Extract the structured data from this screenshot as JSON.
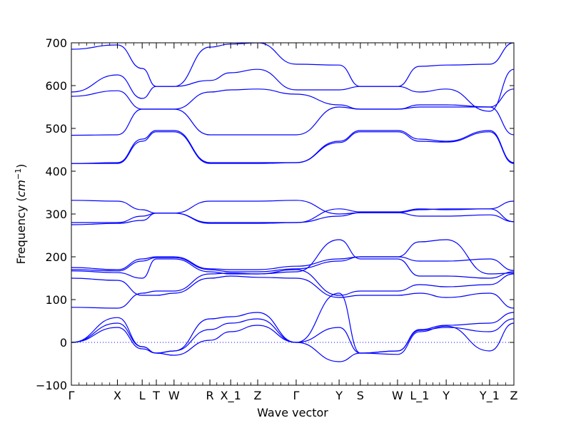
{
  "chart_data": {
    "type": "line",
    "title": "",
    "xlabel": "Wave vector",
    "ylabel_prefix": "Frequency (",
    "ylabel_unit": "cm",
    "ylabel_exp": "−1",
    "ylabel_suffix": ")",
    "ylim": [
      -100,
      700
    ],
    "yticks": [
      -100,
      0,
      100,
      200,
      300,
      400,
      500,
      600,
      700
    ],
    "ytick_labels": [
      "−100",
      "0",
      "100",
      "200",
      "300",
      "400",
      "500",
      "600",
      "700"
    ],
    "xlim": [
      0,
      1
    ],
    "reference_line": {
      "y": 0,
      "style": "dotted"
    },
    "grid": false,
    "line_color": "#0000ff",
    "high_symmetry_points": [
      {
        "label": "Γ",
        "x": 0.0
      },
      {
        "label": "X",
        "x": 0.104
      },
      {
        "label": "L",
        "x": 0.16
      },
      {
        "label": "T",
        "x": 0.192
      },
      {
        "label": "W",
        "x": 0.232
      },
      {
        "label": "R",
        "x": 0.313
      },
      {
        "label": "X_1",
        "x": 0.36
      },
      {
        "label": "Z",
        "x": 0.421
      },
      {
        "label": "Γ",
        "x": 0.508
      },
      {
        "label": "Y",
        "x": 0.605
      },
      {
        "label": "S",
        "x": 0.653
      },
      {
        "label": "W",
        "x": 0.737
      },
      {
        "label": "L_1",
        "x": 0.787
      },
      {
        "label": "Y",
        "x": 0.847
      },
      {
        "label": "Y_1",
        "x": 0.945
      },
      {
        "label": "Z",
        "x": 1.0
      }
    ],
    "series": [
      {
        "x": [
          0,
          0.104,
          0.16,
          0.192,
          0.232,
          0.313,
          0.36,
          0.421,
          0.508,
          0.605,
          0.653,
          0.737,
          0.787,
          0.847,
          0.945,
          1.0
        ],
        "y": [
          0,
          35,
          -15,
          -25,
          -30,
          5,
          25,
          40,
          0,
          -45,
          -25,
          -28,
          25,
          38,
          -20,
          45
        ]
      },
      {
        "x": [
          0,
          0.104,
          0.16,
          0.192,
          0.232,
          0.313,
          0.36,
          0.421,
          0.508,
          0.605,
          0.653,
          0.737,
          0.787,
          0.847,
          0.945,
          1.0
        ],
        "y": [
          0,
          45,
          -10,
          -25,
          -20,
          30,
          45,
          55,
          0,
          35,
          -25,
          -20,
          28,
          35,
          25,
          55
        ]
      },
      {
        "x": [
          0,
          0.104,
          0.16,
          0.192,
          0.232,
          0.313,
          0.36,
          0.421,
          0.508,
          0.605,
          0.653,
          0.737,
          0.787,
          0.847,
          0.945,
          1.0
        ],
        "y": [
          0,
          58,
          -10,
          -25,
          -20,
          55,
          60,
          70,
          0,
          115,
          -25,
          -20,
          30,
          40,
          45,
          70
        ]
      },
      {
        "x": [
          0,
          0.104,
          0.16,
          0.192,
          0.232,
          0.313,
          0.36,
          0.421,
          0.508,
          0.605,
          0.653,
          0.737,
          0.787,
          0.847,
          0.945,
          1.0
        ],
        "y": [
          82,
          80,
          115,
          120,
          120,
          160,
          162,
          160,
          170,
          110,
          120,
          120,
          135,
          130,
          135,
          160
        ]
      },
      {
        "x": [
          0,
          0.104,
          0.16,
          0.192,
          0.232,
          0.313,
          0.36,
          0.421,
          0.508,
          0.605,
          0.653,
          0.737,
          0.787,
          0.847,
          0.945,
          1.0
        ],
        "y": [
          150,
          145,
          110,
          110,
          115,
          150,
          155,
          152,
          150,
          105,
          110,
          110,
          115,
          105,
          115,
          80
        ]
      },
      {
        "x": [
          0,
          0.104,
          0.16,
          0.192,
          0.232,
          0.313,
          0.36,
          0.421,
          0.508,
          0.605,
          0.653,
          0.737,
          0.787,
          0.847,
          0.945,
          1.0
        ],
        "y": [
          167,
          163,
          150,
          195,
          195,
          165,
          160,
          160,
          165,
          240,
          195,
          195,
          155,
          155,
          150,
          165
        ]
      },
      {
        "x": [
          0,
          0.104,
          0.16,
          0.192,
          0.232,
          0.313,
          0.36,
          0.421,
          0.508,
          0.605,
          0.653,
          0.737,
          0.787,
          0.847,
          0.945,
          1.0
        ],
        "y": [
          170,
          167,
          190,
          198,
          198,
          170,
          165,
          165,
          172,
          190,
          200,
          200,
          190,
          190,
          195,
          168
        ]
      },
      {
        "x": [
          0,
          0.104,
          0.16,
          0.192,
          0.232,
          0.313,
          0.36,
          0.421,
          0.508,
          0.605,
          0.653,
          0.737,
          0.787,
          0.847,
          0.945,
          1.0
        ],
        "y": [
          175,
          170,
          195,
          200,
          200,
          172,
          170,
          170,
          178,
          195,
          200,
          200,
          235,
          240,
          160,
          162
        ]
      },
      {
        "x": [
          0,
          0.104,
          0.16,
          0.192,
          0.232,
          0.313,
          0.36,
          0.421,
          0.508,
          0.605,
          0.653,
          0.737,
          0.787,
          0.847,
          0.945,
          1.0
        ],
        "y": [
          275,
          278,
          285,
          302,
          302,
          278,
          278,
          278,
          280,
          312,
          305,
          305,
          312,
          310,
          312,
          282
        ]
      },
      {
        "x": [
          0,
          0.104,
          0.16,
          0.192,
          0.232,
          0.313,
          0.36,
          0.421,
          0.508,
          0.605,
          0.653,
          0.737,
          0.787,
          0.847,
          0.945,
          1.0
        ],
        "y": [
          280,
          280,
          295,
          302,
          302,
          280,
          280,
          280,
          280,
          295,
          303,
          303,
          295,
          295,
          298,
          282
        ]
      },
      {
        "x": [
          0,
          0.104,
          0.16,
          0.192,
          0.232,
          0.313,
          0.36,
          0.421,
          0.508,
          0.605,
          0.653,
          0.737,
          0.787,
          0.847,
          0.945,
          1.0
        ],
        "y": [
          332,
          330,
          310,
          302,
          302,
          330,
          330,
          330,
          332,
          300,
          303,
          303,
          310,
          312,
          312,
          330
        ]
      },
      {
        "x": [
          0,
          0.104,
          0.16,
          0.192,
          0.232,
          0.313,
          0.36,
          0.421,
          0.508,
          0.605,
          0.653,
          0.737,
          0.787,
          0.847,
          0.945,
          1.0
        ],
        "y": [
          418,
          418,
          470,
          492,
          492,
          418,
          418,
          418,
          420,
          467,
          492,
          492,
          470,
          468,
          492,
          418
        ]
      },
      {
        "x": [
          0,
          0.104,
          0.16,
          0.192,
          0.232,
          0.313,
          0.36,
          0.421,
          0.508,
          0.605,
          0.653,
          0.737,
          0.787,
          0.847,
          0.945,
          1.0
        ],
        "y": [
          418,
          420,
          475,
          495,
          495,
          420,
          420,
          420,
          420,
          470,
          495,
          495,
          475,
          470,
          495,
          420
        ]
      },
      {
        "x": [
          0,
          0.104,
          0.16,
          0.192,
          0.232,
          0.313,
          0.36,
          0.421,
          0.508,
          0.605,
          0.653,
          0.737,
          0.787,
          0.847,
          0.945,
          1.0
        ],
        "y": [
          484,
          485,
          545,
          545,
          545,
          485,
          485,
          485,
          485,
          550,
          545,
          545,
          550,
          550,
          550,
          485
        ]
      },
      {
        "x": [
          0,
          0.104,
          0.16,
          0.192,
          0.232,
          0.313,
          0.36,
          0.421,
          0.508,
          0.605,
          0.653,
          0.737,
          0.787,
          0.847,
          0.945,
          1.0
        ],
        "y": [
          575,
          588,
          545,
          545,
          545,
          585,
          590,
          592,
          580,
          555,
          545,
          545,
          555,
          555,
          550,
          592
        ]
      },
      {
        "x": [
          0,
          0.104,
          0.16,
          0.192,
          0.232,
          0.313,
          0.36,
          0.421,
          0.508,
          0.605,
          0.653,
          0.737,
          0.787,
          0.847,
          0.945,
          1.0
        ],
        "y": [
          585,
          625,
          570,
          598,
          598,
          612,
          630,
          638,
          590,
          590,
          598,
          598,
          585,
          592,
          540,
          638
        ]
      },
      {
        "x": [
          0,
          0.104,
          0.16,
          0.192,
          0.232,
          0.313,
          0.36,
          0.421,
          0.508,
          0.605,
          0.653,
          0.737,
          0.787,
          0.847,
          0.945,
          1.0
        ],
        "y": [
          685,
          695,
          640,
          598,
          598,
          690,
          697,
          700,
          650,
          648,
          598,
          598,
          645,
          648,
          650,
          700
        ]
      }
    ]
  }
}
